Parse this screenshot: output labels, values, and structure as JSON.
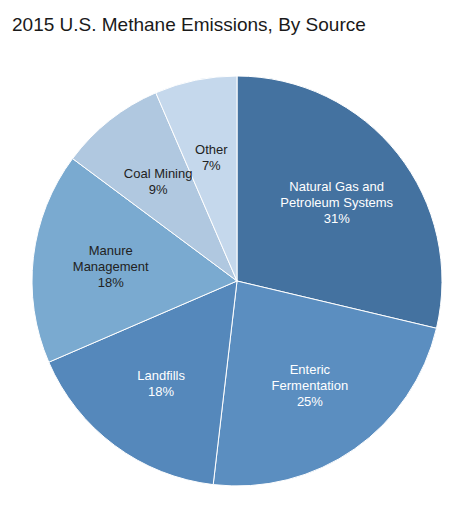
{
  "chart_data": {
    "type": "pie",
    "title": "2015 U.S. Methane Emissions, By Source",
    "categories": [
      "Natural Gas and\nPetroleum Systems",
      "Enteric\nFermentation",
      "Landfills",
      "Manure\nManagement",
      "Coal Mining",
      "Other"
    ],
    "values": [
      31,
      25,
      18,
      18,
      9,
      7
    ],
    "value_labels": [
      "31%",
      "25%",
      "18%",
      "18%",
      "9%",
      "7%"
    ],
    "data_labels": true,
    "colors": [
      "#4472A0",
      "#5B8EC0",
      "#5588BB",
      "#7AAAD0",
      "#B0C8E0",
      "#C5D8EC"
    ]
  }
}
